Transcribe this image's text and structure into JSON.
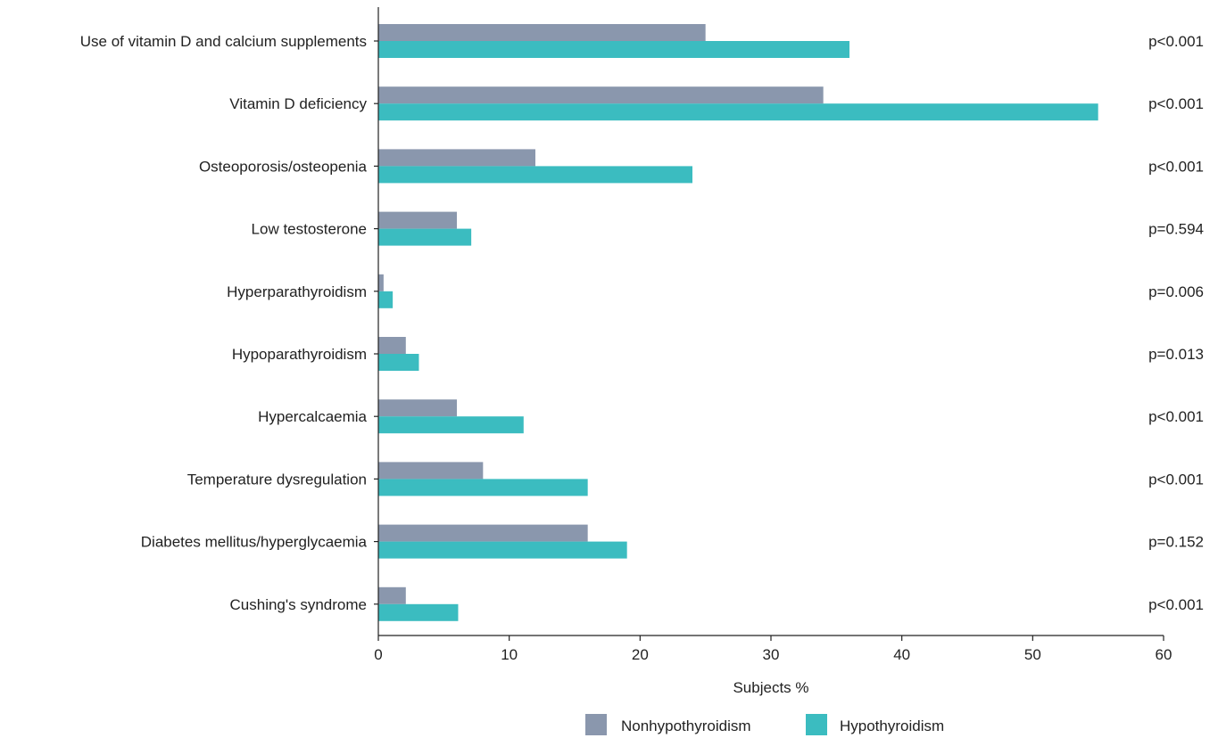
{
  "chart_data": {
    "type": "bar",
    "orientation": "horizontal",
    "title": "",
    "xlabel": "Subjects %",
    "ylabel": "",
    "xlim": [
      0,
      60
    ],
    "xticks": [
      0,
      10,
      20,
      30,
      40,
      50,
      60
    ],
    "grid": false,
    "legend_position": "bottom",
    "categories": [
      "Use of vitamin D and calcium supplements",
      "Vitamin D deficiency",
      "Osteoporosis/osteopenia",
      "Low testosterone",
      "Hyperparathyroidism",
      "Hypoparathyroidism",
      "Hypercalcaemia",
      "Temperature dysregulation",
      "Diabetes mellitus/hyperglycaemia",
      "Cushing's syndrome"
    ],
    "series": [
      {
        "name": "Nonhypothyroidism",
        "color": "#8a97ad",
        "values": [
          25,
          34,
          12,
          6,
          0.4,
          2.1,
          6,
          8,
          16,
          2.1
        ]
      },
      {
        "name": "Hypothyroidism",
        "color": "#3bbcc0",
        "values": [
          36,
          55,
          24,
          7.1,
          1.1,
          3.1,
          11.1,
          16,
          19,
          6.1
        ]
      }
    ],
    "annotations": [
      "p<0.001",
      "p<0.001",
      "p<0.001",
      "p=0.594",
      "p=0.006",
      "p=0.013",
      "p<0.001",
      "p<0.001",
      "p=0.152",
      "p<0.001"
    ]
  }
}
